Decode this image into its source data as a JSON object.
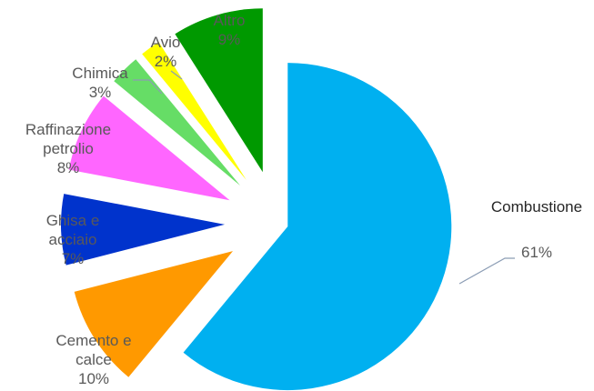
{
  "chart_data": {
    "type": "pie",
    "title": "",
    "slices": [
      {
        "label_lines": [
          "Combustione"
        ],
        "percent_label": "61%",
        "value": 61,
        "color": "#00b0f0"
      },
      {
        "label_lines": [
          "Cemento e",
          "calce"
        ],
        "percent_label": "10%",
        "value": 10,
        "color": "#ff9900"
      },
      {
        "label_lines": [
          "Ghisa e",
          "acciaio"
        ],
        "percent_label": "7%",
        "value": 7,
        "color": "#0033cc"
      },
      {
        "label_lines": [
          "Raffinazione",
          "petrolio"
        ],
        "percent_label": "8%",
        "value": 8,
        "color": "#ff66ff"
      },
      {
        "label_lines": [
          "Chimica"
        ],
        "percent_label": "3%",
        "value": 3,
        "color": "#66dd66"
      },
      {
        "label_lines": [
          "Avio"
        ],
        "percent_label": "2%",
        "value": 2,
        "color": "#ffff00"
      },
      {
        "label_lines": [
          "Altro"
        ],
        "percent_label": "9%",
        "value": 9,
        "color": "#009900"
      }
    ]
  }
}
